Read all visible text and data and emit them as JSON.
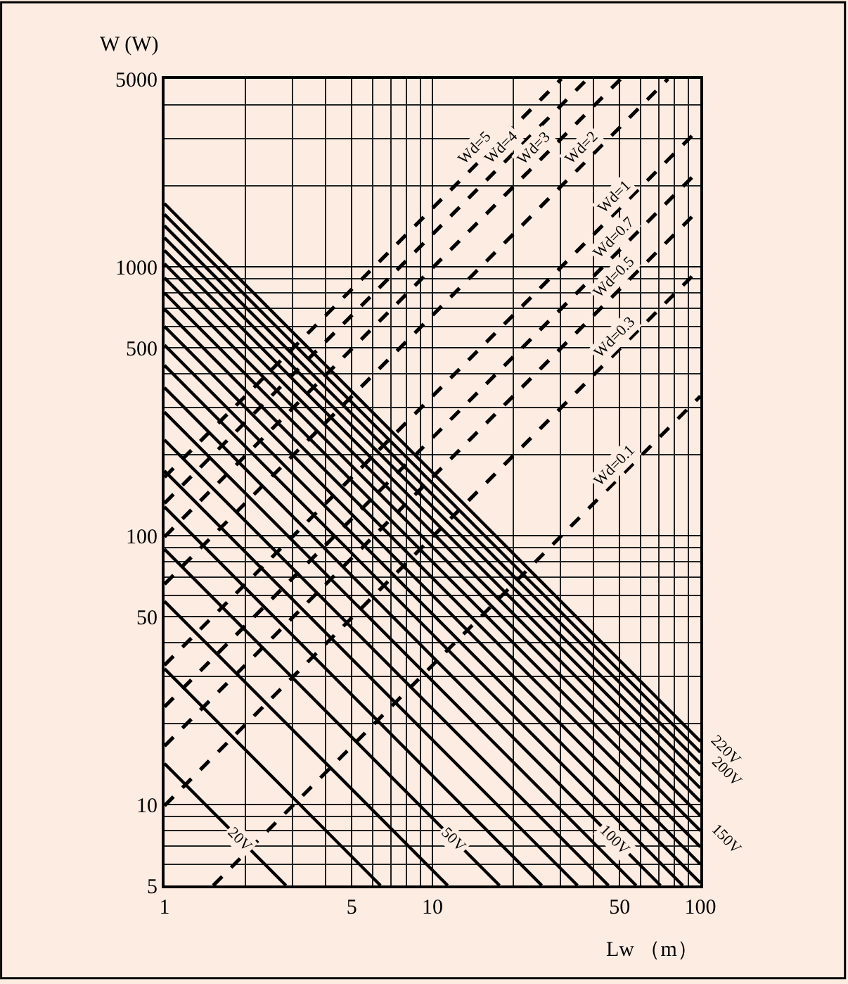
{
  "chart_data": {
    "type": "line",
    "xlabel": "Lw （m）",
    "ylabel": "W (W)",
    "log": "xy",
    "grid": true,
    "xlim": [
      1,
      100
    ],
    "ylim": [
      5,
      5000
    ],
    "xticks": [
      1,
      5,
      10,
      50,
      100
    ],
    "yticks": [
      5,
      10,
      50,
      100,
      500,
      1000,
      5000
    ],
    "series": [
      {
        "name": "20V",
        "color": "#000000",
        "line_style": "solid",
        "x": [
          1,
          2.84
        ],
        "values": [
          14.2,
          5
        ]
      },
      {
        "color": "#000000",
        "line_style": "solid",
        "x": [
          1,
          6.4
        ],
        "values": [
          32,
          5
        ]
      },
      {
        "color": "#000000",
        "line_style": "solid",
        "x": [
          1,
          11.4
        ],
        "values": [
          57,
          5
        ]
      },
      {
        "name": "50V",
        "color": "#000000",
        "line_style": "solid",
        "x": [
          1,
          17.8
        ],
        "values": [
          89,
          5
        ]
      },
      {
        "color": "#000000",
        "line_style": "solid",
        "x": [
          1,
          25.6
        ],
        "values": [
          128,
          5
        ]
      },
      {
        "color": "#000000",
        "line_style": "solid",
        "x": [
          1,
          34.8
        ],
        "values": [
          174,
          5
        ]
      },
      {
        "color": "#000000",
        "line_style": "solid",
        "x": [
          1,
          45.4
        ],
        "values": [
          227,
          5
        ]
      },
      {
        "color": "#000000",
        "line_style": "solid",
        "x": [
          1,
          57.6
        ],
        "values": [
          288,
          5
        ]
      },
      {
        "name": "100V",
        "color": "#000000",
        "line_style": "solid",
        "x": [
          1,
          71
        ],
        "values": [
          355,
          5
        ]
      },
      {
        "color": "#000000",
        "line_style": "solid",
        "x": [
          1,
          86
        ],
        "values": [
          430,
          5
        ]
      },
      {
        "color": "#000000",
        "line_style": "solid",
        "x": [
          1,
          100
        ],
        "values": [
          511,
          5.11
        ]
      },
      {
        "color": "#000000",
        "line_style": "solid",
        "x": [
          1,
          100
        ],
        "values": [
          600,
          6
        ]
      },
      {
        "color": "#000000",
        "line_style": "solid",
        "x": [
          1,
          100
        ],
        "values": [
          696,
          6.96
        ]
      },
      {
        "name": "150V",
        "color": "#000000",
        "line_style": "solid",
        "x": [
          1,
          100
        ],
        "values": [
          799,
          7.99
        ]
      },
      {
        "color": "#000000",
        "line_style": "solid",
        "x": [
          1,
          100
        ],
        "values": [
          909,
          9.09
        ]
      },
      {
        "color": "#000000",
        "line_style": "solid",
        "x": [
          1,
          100
        ],
        "values": [
          1026,
          10.26
        ]
      },
      {
        "color": "#000000",
        "line_style": "solid",
        "x": [
          1,
          100
        ],
        "values": [
          1150,
          11.5
        ]
      },
      {
        "color": "#000000",
        "line_style": "solid",
        "x": [
          1,
          100
        ],
        "values": [
          1282,
          12.82
        ]
      },
      {
        "name": "200V",
        "color": "#000000",
        "line_style": "solid",
        "x": [
          1,
          100
        ],
        "values": [
          1420,
          14.2
        ]
      },
      {
        "color": "#000000",
        "line_style": "solid",
        "x": [
          1,
          100
        ],
        "values": [
          1566,
          15.66
        ]
      },
      {
        "name": "220V",
        "color": "#000000",
        "line_style": "solid",
        "x": [
          1,
          100
        ],
        "values": [
          1718,
          17.18
        ]
      },
      {
        "name": "Wd=0.1",
        "color": "#000000",
        "line_style": "dashed",
        "x": [
          1.52,
          100
        ],
        "values": [
          5,
          330
        ]
      },
      {
        "name": "Wd=0.3",
        "color": "#000000",
        "line_style": "dashed",
        "x": [
          1,
          100
        ],
        "values": [
          9.9,
          990
        ]
      },
      {
        "name": "Wd=0.5",
        "color": "#000000",
        "line_style": "dashed",
        "x": [
          1,
          100
        ],
        "values": [
          16.5,
          1650
        ]
      },
      {
        "name": "Wd=0.7",
        "color": "#000000",
        "line_style": "dashed",
        "x": [
          1,
          100
        ],
        "values": [
          23.1,
          2310
        ]
      },
      {
        "name": "Wd=1",
        "color": "#000000",
        "line_style": "dashed",
        "x": [
          1,
          100
        ],
        "values": [
          33,
          3300
        ]
      },
      {
        "name": "Wd=2",
        "color": "#000000",
        "line_style": "dashed",
        "x": [
          1,
          75.8
        ],
        "values": [
          66,
          5000
        ]
      },
      {
        "name": "Wd=3",
        "color": "#000000",
        "line_style": "dashed",
        "x": [
          1,
          50.5
        ],
        "values": [
          99,
          5000
        ]
      },
      {
        "name": "Wd=4",
        "color": "#000000",
        "line_style": "dashed",
        "x": [
          1,
          37.9
        ],
        "values": [
          132,
          5000
        ]
      },
      {
        "name": "Wd=5",
        "color": "#000000",
        "line_style": "dashed",
        "x": [
          1,
          30.3
        ],
        "values": [
          165,
          5000
        ]
      }
    ]
  }
}
